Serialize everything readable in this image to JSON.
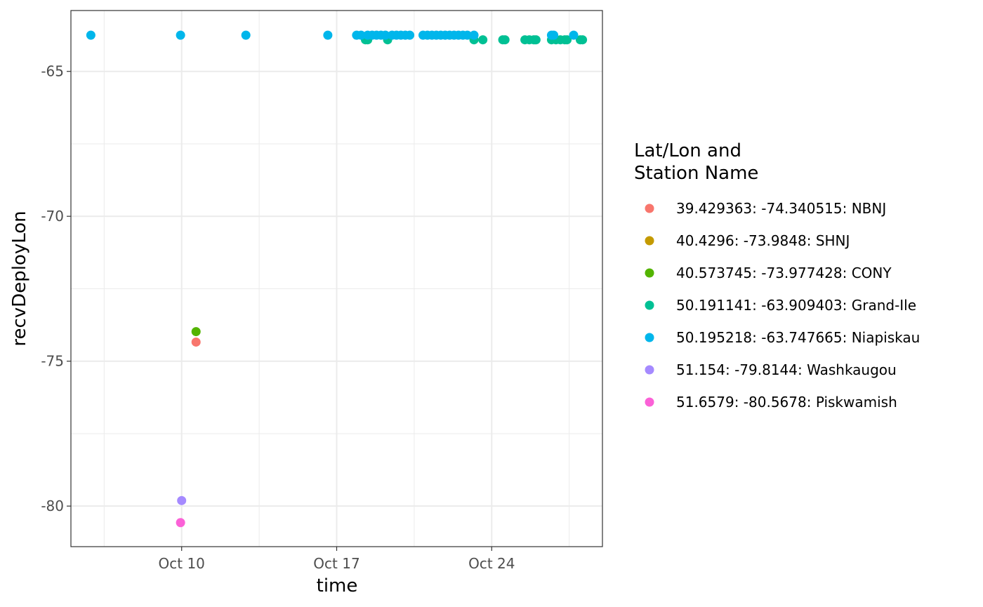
{
  "chart_data": {
    "type": "scatter",
    "xlabel": "time",
    "ylabel": "recvDeployLon",
    "x_ticks": [
      {
        "label": "Oct 10",
        "day": 10
      },
      {
        "label": "Oct 17",
        "day": 17
      },
      {
        "label": "Oct 24",
        "day": 24
      }
    ],
    "y_ticks": [
      -65,
      -70,
      -75,
      -80
    ],
    "xlim": [
      "Oct 5",
      "Oct 29"
    ],
    "ylim": [
      -81.4,
      -62.9
    ],
    "grid": true,
    "legend": {
      "title_lines": [
        "Lat/Lon and",
        "Station Name"
      ],
      "placement": "right"
    },
    "series": [
      {
        "name": "39.429363: -74.340515: NBNJ",
        "color": "#F8766D",
        "points": [
          {
            "x": 10.65,
            "y": -74.34
          }
        ]
      },
      {
        "name": "40.4296: -73.9848: SHNJ",
        "color": "#C49A00",
        "points": []
      },
      {
        "name": "40.573745: -73.977428: CONY",
        "color": "#53B400",
        "points": [
          {
            "x": 10.65,
            "y": -73.98
          }
        ]
      },
      {
        "name": "50.191141: -63.909403: Grand-Ile",
        "color": "#00C094",
        "points": [
          {
            "x": 18.3,
            "y": -63.91
          },
          {
            "x": 18.4,
            "y": -63.91
          },
          {
            "x": 19.3,
            "y": -63.91
          },
          {
            "x": 23.2,
            "y": -63.91
          },
          {
            "x": 23.6,
            "y": -63.91
          },
          {
            "x": 24.5,
            "y": -63.91
          },
          {
            "x": 24.6,
            "y": -63.91
          },
          {
            "x": 25.5,
            "y": -63.91
          },
          {
            "x": 25.7,
            "y": -63.91
          },
          {
            "x": 25.9,
            "y": -63.91
          },
          {
            "x": 26.0,
            "y": -63.91
          },
          {
            "x": 26.7,
            "y": -63.91
          },
          {
            "x": 26.9,
            "y": -63.91
          },
          {
            "x": 27.1,
            "y": -63.91
          },
          {
            "x": 27.3,
            "y": -63.91
          },
          {
            "x": 27.4,
            "y": -63.91
          },
          {
            "x": 28.0,
            "y": -63.91
          },
          {
            "x": 28.1,
            "y": -63.91
          }
        ]
      },
      {
        "name": "50.195218: -63.747665: Niapiskau",
        "color": "#00B6EB",
        "points": [
          {
            "x": 5.9,
            "y": -63.75
          },
          {
            "x": 9.95,
            "y": -63.75
          },
          {
            "x": 12.9,
            "y": -63.75
          },
          {
            "x": 16.6,
            "y": -63.75
          },
          {
            "x": 17.9,
            "y": -63.75
          },
          {
            "x": 18.1,
            "y": -63.75
          },
          {
            "x": 18.4,
            "y": -63.75
          },
          {
            "x": 18.6,
            "y": -63.75
          },
          {
            "x": 18.8,
            "y": -63.75
          },
          {
            "x": 19.0,
            "y": -63.75
          },
          {
            "x": 19.2,
            "y": -63.75
          },
          {
            "x": 19.5,
            "y": -63.75
          },
          {
            "x": 19.7,
            "y": -63.75
          },
          {
            "x": 19.9,
            "y": -63.75
          },
          {
            "x": 20.1,
            "y": -63.75
          },
          {
            "x": 20.3,
            "y": -63.75
          },
          {
            "x": 20.9,
            "y": -63.75
          },
          {
            "x": 21.1,
            "y": -63.75
          },
          {
            "x": 21.3,
            "y": -63.75
          },
          {
            "x": 21.5,
            "y": -63.75
          },
          {
            "x": 21.7,
            "y": -63.75
          },
          {
            "x": 21.9,
            "y": -63.75
          },
          {
            "x": 22.1,
            "y": -63.75
          },
          {
            "x": 22.3,
            "y": -63.75
          },
          {
            "x": 22.5,
            "y": -63.75
          },
          {
            "x": 22.7,
            "y": -63.75
          },
          {
            "x": 22.9,
            "y": -63.75
          },
          {
            "x": 23.2,
            "y": -63.75
          },
          {
            "x": 26.7,
            "y": -63.75
          },
          {
            "x": 26.8,
            "y": -63.75
          },
          {
            "x": 27.7,
            "y": -63.75
          }
        ]
      },
      {
        "name": "51.154: -79.8144: Washkaugou",
        "color": "#A58AFF",
        "points": [
          {
            "x": 10.0,
            "y": -79.81
          }
        ]
      },
      {
        "name": "51.6579: -80.5678: Piskwamish",
        "color": "#FB61D7",
        "points": [
          {
            "x": 9.95,
            "y": -80.57
          }
        ]
      }
    ]
  }
}
